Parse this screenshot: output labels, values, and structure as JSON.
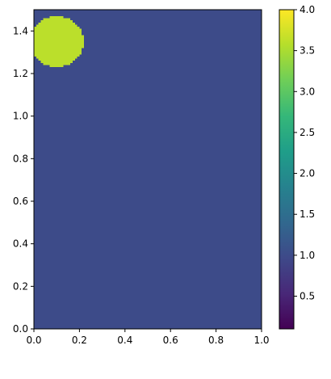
{
  "chart_data": {
    "type": "heatmap",
    "title": "",
    "xlabel": "",
    "ylabel": "",
    "xlim": [
      0,
      1
    ],
    "ylim": [
      0,
      1.5
    ],
    "x_ticks": [
      {
        "value": 0.0,
        "label": "0.0"
      },
      {
        "value": 0.2,
        "label": "0.2"
      },
      {
        "value": 0.4,
        "label": "0.4"
      },
      {
        "value": 0.6,
        "label": "0.6"
      },
      {
        "value": 0.8,
        "label": "0.8"
      },
      {
        "value": 1.0,
        "label": "1.0"
      }
    ],
    "y_ticks": [
      {
        "value": 0.0,
        "label": "0.0"
      },
      {
        "value": 0.2,
        "label": "0.2"
      },
      {
        "value": 0.4,
        "label": "0.4"
      },
      {
        "value": 0.6,
        "label": "0.6"
      },
      {
        "value": 0.8,
        "label": "0.8"
      },
      {
        "value": 1.0,
        "label": "1.0"
      },
      {
        "value": 1.2,
        "label": "1.2"
      },
      {
        "value": 1.4,
        "label": "1.4"
      }
    ],
    "colormap": "viridis",
    "color_range": [
      0.1,
      4.0
    ],
    "colorbar_ticks": [
      {
        "value": 0.5,
        "label": "0.5"
      },
      {
        "value": 1.0,
        "label": "1.0"
      },
      {
        "value": 1.5,
        "label": "1.5"
      },
      {
        "value": 2.0,
        "label": "2.0"
      },
      {
        "value": 2.5,
        "label": "2.5"
      },
      {
        "value": 3.0,
        "label": "3.0"
      },
      {
        "value": 3.5,
        "label": "3.5"
      },
      {
        "value": 4.0,
        "label": "4.0"
      }
    ],
    "field": {
      "background_value": 1.0,
      "grid": {
        "nx": 100,
        "ny": 150
      },
      "regions": [
        {
          "shape": "circle",
          "center": [
            0.1,
            1.35
          ],
          "radius": 0.12,
          "value": 3.6
        }
      ]
    }
  }
}
